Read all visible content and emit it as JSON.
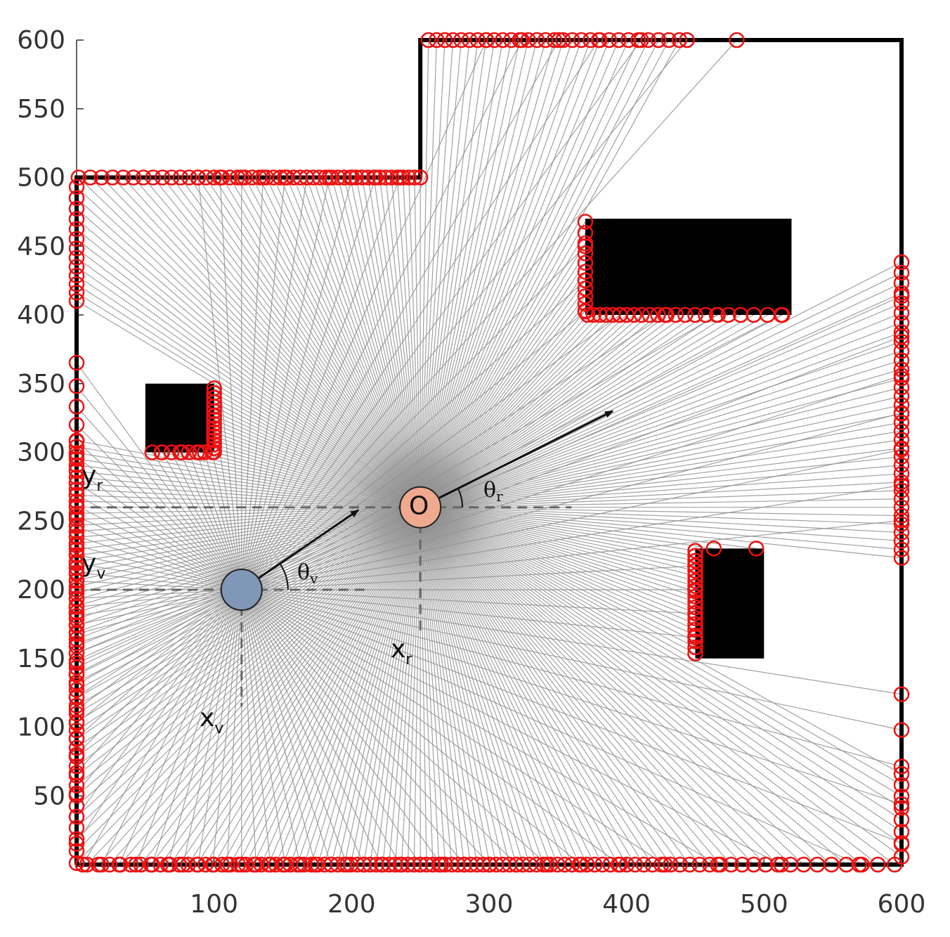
{
  "chart_data": {
    "type": "scatter",
    "x_ticks": [
      "100",
      "200",
      "300",
      "400",
      "500",
      "600"
    ],
    "y_ticks": [
      "50",
      "100",
      "150",
      "200",
      "250",
      "300",
      "350",
      "400",
      "450",
      "500",
      "550",
      "600"
    ],
    "xlim": [
      0,
      600
    ],
    "ylim": [
      0,
      600
    ],
    "grid": false,
    "walls": [
      [
        0,
        0
      ],
      [
        0,
        500
      ],
      [
        250,
        500
      ],
      [
        250,
        600
      ],
      [
        600,
        600
      ],
      [
        600,
        0
      ],
      [
        0,
        0
      ]
    ],
    "obstacles": [
      {
        "x": [
          50,
          100
        ],
        "y": [
          300,
          350
        ]
      },
      {
        "x": [
          370,
          520
        ],
        "y": [
          400,
          470
        ]
      },
      {
        "x": [
          450,
          500
        ],
        "y": [
          150,
          230
        ]
      }
    ],
    "vehicle": {
      "x": 120,
      "y": 200,
      "heading_to": [
        205,
        258
      ],
      "color": "#8097b8"
    },
    "robot": {
      "x": 250,
      "y": 260,
      "heading_to": [
        390,
        330
      ],
      "color": "#eea98f",
      "marker_text": "O"
    },
    "hit_color": "#ee1111",
    "ray_color": "#909090",
    "labels": {
      "yr": "y",
      "yr_sub": "r",
      "yv": "y",
      "yv_sub": "v",
      "xr": "x",
      "xr_sub": "r",
      "xv": "x",
      "xv_sub": "v",
      "theta_r": "θ",
      "theta_r_sub": "r",
      "theta_v": "θ",
      "theta_v_sub": "v"
    }
  }
}
